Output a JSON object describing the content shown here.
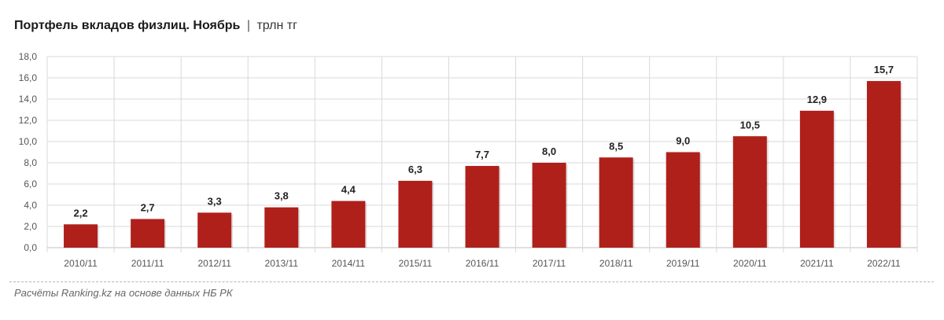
{
  "title": {
    "main": "Портфель вкладов физлиц. Ноябрь",
    "separator": "|",
    "unit": "трлн тг"
  },
  "source": "Расчёты Ranking.kz на основе данных НБ РК",
  "colors": {
    "bar": "#b0201b",
    "grid": "#d9d9d9",
    "axis": "#bfbfbf"
  },
  "chart_data": {
    "type": "bar",
    "title": "Портфель вкладов физлиц. Ноябрь",
    "ylabel": "трлн тг",
    "xlabel": "",
    "categories": [
      "2010/11",
      "2011/11",
      "2012/11",
      "2013/11",
      "2014/11",
      "2015/11",
      "2016/11",
      "2017/11",
      "2018/11",
      "2019/11",
      "2020/11",
      "2021/11",
      "2022/11"
    ],
    "values": [
      2.2,
      2.7,
      3.3,
      3.8,
      4.4,
      6.3,
      7.7,
      8.0,
      8.5,
      9.0,
      10.5,
      12.9,
      15.7
    ],
    "value_labels": [
      "2,2",
      "2,7",
      "3,3",
      "3,8",
      "4,4",
      "6,3",
      "7,7",
      "8,0",
      "8,5",
      "9,0",
      "10,5",
      "12,9",
      "15,7"
    ],
    "ylim": [
      0,
      18
    ],
    "yticks": [
      "0,0",
      "2,0",
      "4,0",
      "6,0",
      "8,0",
      "10,0",
      "12,0",
      "14,0",
      "16,0",
      "18,0"
    ],
    "grid": true,
    "legend": "none"
  }
}
